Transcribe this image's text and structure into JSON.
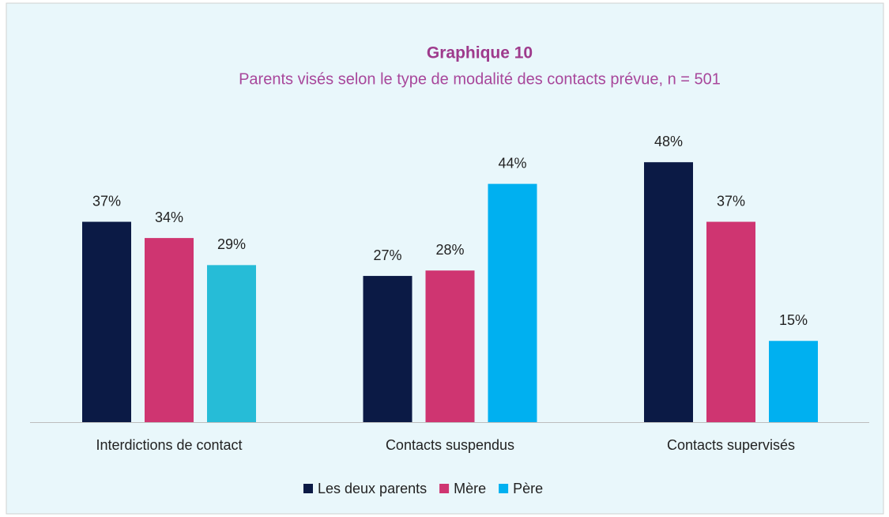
{
  "chart_data": {
    "type": "bar",
    "title": "Graphique 10",
    "subtitle": "Parents visés selon le type de modalité des contacts prévue, n = 501",
    "categories": [
      "Interdictions de contact",
      "Contacts suspendus",
      "Contacts supervisés"
    ],
    "series": [
      {
        "name": "Les deux parents",
        "color": "#0b1a45",
        "values": [
          37,
          27,
          48
        ],
        "value_labels": [
          "37%",
          "27%",
          "48%"
        ]
      },
      {
        "name": "Mère",
        "color": "#cf3571",
        "values": [
          34,
          28,
          37
        ],
        "value_labels": [
          "34%",
          "28%",
          "37%"
        ]
      },
      {
        "name": "Père",
        "color": "#00b0f0",
        "colors": [
          "#26bcd7",
          "#00b0f0",
          "#00b0f0"
        ],
        "values": [
          29,
          44,
          15
        ],
        "value_labels": [
          "29%",
          "44%",
          "15%"
        ]
      }
    ],
    "legend": "bottom"
  }
}
